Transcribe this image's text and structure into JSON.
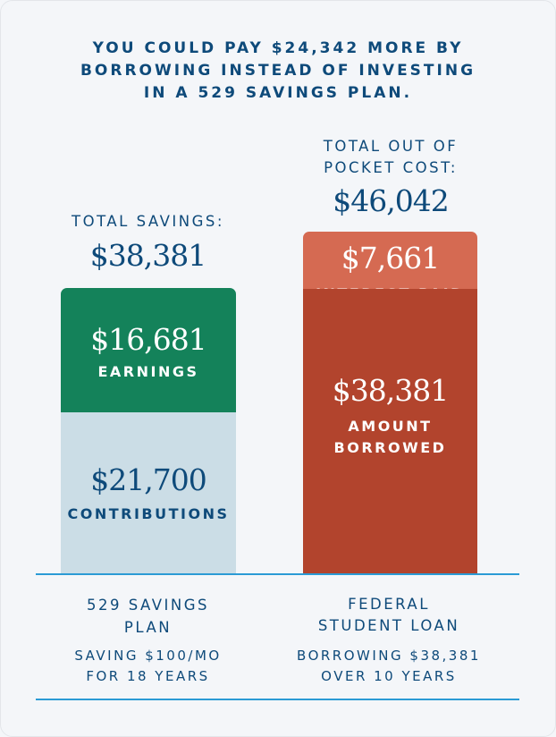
{
  "headline": {
    "line1": "YOU COULD PAY $24,342 MORE BY",
    "line2": "BORROWING INSTEAD OF INVESTING",
    "line3": "IN A 529 SAVINGS PLAN."
  },
  "colors": {
    "background": "#f4f6f9",
    "headline_text": "#0e4a7a",
    "earnings": "#14825a",
    "contributions": "#cbdde6",
    "interest_paid": "#d56a52",
    "amount_borrowed": "#b2442d",
    "rule": "#2b9bd5"
  },
  "chart_data": {
    "type": "bar",
    "stacked": true,
    "categories": [
      "529 SAVINGS PLAN",
      "FEDERAL STUDENT LOAN"
    ],
    "bars": [
      {
        "total_label": "TOTAL SAVINGS:",
        "total_value": "$38,381",
        "total": 38381,
        "title": "529 SAVINGS PLAN",
        "subtitle_line1": "SAVING $100/MO",
        "subtitle_line2": "FOR 18 YEARS",
        "segments": [
          {
            "name": "CONTRIBUTIONS",
            "value": 21700,
            "display": "$21,700",
            "color": "#cbdde6",
            "text_color": "#0e4a7a"
          },
          {
            "name": "EARNINGS",
            "value": 16681,
            "display": "$16,681",
            "color": "#14825a",
            "text_color": "#ffffff"
          }
        ]
      },
      {
        "total_label_line1": "TOTAL OUT OF",
        "total_label_line2": "POCKET COST:",
        "total_value": "$46,042",
        "total": 46042,
        "title_line1": "FEDERAL",
        "title_line2": "STUDENT LOAN",
        "subtitle_line1": "BORROWING $38,381",
        "subtitle_line2": "OVER 10 YEARS",
        "segments": [
          {
            "name_line1": "AMOUNT",
            "name_line2": "BORROWED",
            "value": 38381,
            "display": "$38,381",
            "color": "#b2442d",
            "text_color": "#ffffff"
          },
          {
            "name": "INTEREST PAID",
            "value": 7661,
            "display": "$7,661",
            "color": "#d56a52",
            "text_color": "#ffffff"
          }
        ]
      }
    ],
    "difference": 24342
  }
}
